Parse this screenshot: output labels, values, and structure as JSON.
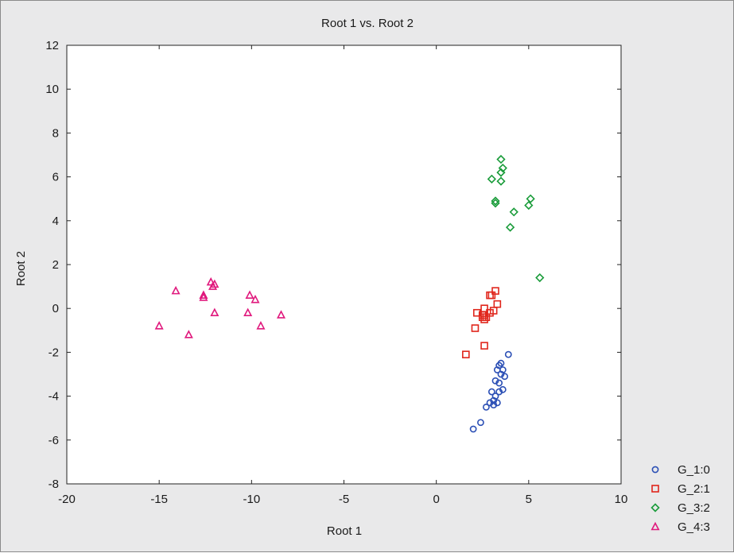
{
  "chart_data": {
    "type": "scatter",
    "title": "Root 1 vs. Root 2",
    "xlabel": "Root 1",
    "ylabel": "Root 2",
    "xlim": [
      -20,
      10
    ],
    "ylim": [
      -8,
      12
    ],
    "xticks": [
      -20,
      -15,
      -10,
      -5,
      0,
      5,
      10
    ],
    "yticks": [
      12,
      10,
      8,
      6,
      4,
      2,
      0,
      -2,
      -4,
      -6,
      -8
    ],
    "grid": false,
    "legend_position": "bottom-right",
    "series": [
      {
        "name": "G_1:0",
        "marker": "circle",
        "color": "#2b4fb5",
        "points": [
          [
            3.9,
            -2.1
          ],
          [
            3.5,
            -2.5
          ],
          [
            3.4,
            -2.6
          ],
          [
            3.3,
            -2.8
          ],
          [
            3.6,
            -2.8
          ],
          [
            3.5,
            -3.0
          ],
          [
            3.7,
            -3.1
          ],
          [
            3.2,
            -3.3
          ],
          [
            3.4,
            -3.4
          ],
          [
            3.6,
            -3.7
          ],
          [
            3.4,
            -3.8
          ],
          [
            3.0,
            -3.8
          ],
          [
            3.2,
            -4.0
          ],
          [
            3.1,
            -4.2
          ],
          [
            3.3,
            -4.3
          ],
          [
            2.9,
            -4.3
          ],
          [
            3.1,
            -4.4
          ],
          [
            2.7,
            -4.5
          ],
          [
            2.4,
            -5.2
          ],
          [
            2.0,
            -5.5
          ]
        ]
      },
      {
        "name": "G_2:1",
        "marker": "square",
        "color": "#e0261c",
        "points": [
          [
            3.2,
            0.8
          ],
          [
            2.9,
            0.6
          ],
          [
            3.0,
            0.6
          ],
          [
            3.3,
            0.2
          ],
          [
            2.6,
            0.0
          ],
          [
            3.1,
            -0.1
          ],
          [
            2.9,
            -0.2
          ],
          [
            2.2,
            -0.2
          ],
          [
            2.5,
            -0.3
          ],
          [
            2.6,
            -0.3
          ],
          [
            2.5,
            -0.4
          ],
          [
            2.7,
            -0.4
          ],
          [
            2.6,
            -0.5
          ],
          [
            2.1,
            -0.9
          ],
          [
            2.6,
            -1.7
          ],
          [
            1.6,
            -2.1
          ]
        ]
      },
      {
        "name": "G_3:2",
        "marker": "diamond",
        "color": "#1a9c3a",
        "points": [
          [
            3.5,
            6.8
          ],
          [
            3.6,
            6.4
          ],
          [
            3.5,
            6.2
          ],
          [
            3.0,
            5.9
          ],
          [
            3.5,
            5.8
          ],
          [
            3.2,
            4.9
          ],
          [
            3.2,
            4.8
          ],
          [
            5.1,
            5.0
          ],
          [
            5.0,
            4.7
          ],
          [
            4.2,
            4.4
          ],
          [
            4.0,
            3.7
          ],
          [
            5.6,
            1.4
          ]
        ]
      },
      {
        "name": "G_4:3",
        "marker": "triangle",
        "color": "#e0197d",
        "points": [
          [
            -12.2,
            1.2
          ],
          [
            -12.0,
            1.1
          ],
          [
            -12.1,
            1.0
          ],
          [
            -14.1,
            0.8
          ],
          [
            -12.6,
            0.6
          ],
          [
            -12.6,
            0.5
          ],
          [
            -10.1,
            0.6
          ],
          [
            -9.8,
            0.4
          ],
          [
            -12.0,
            -0.2
          ],
          [
            -10.2,
            -0.2
          ],
          [
            -8.4,
            -0.3
          ],
          [
            -15.0,
            -0.8
          ],
          [
            -9.5,
            -0.8
          ],
          [
            -13.4,
            -1.2
          ]
        ]
      }
    ]
  }
}
